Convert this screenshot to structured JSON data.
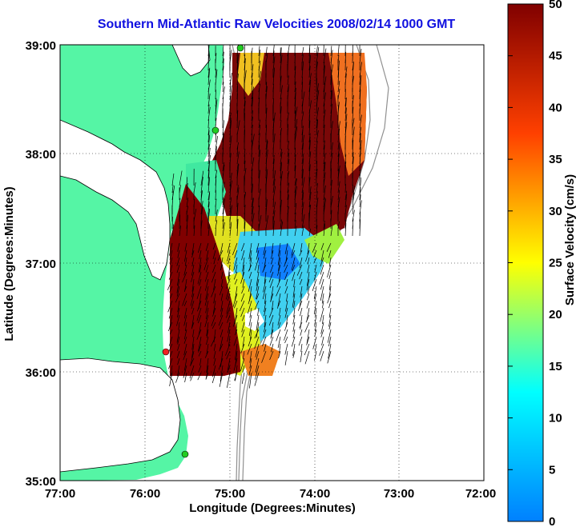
{
  "title": "Southern Mid-Atlantic Raw Velocities 2008/02/14 1000 GMT",
  "xlabel": "Longitude (Degrees:Minutes)",
  "ylabel": "Latitude (Degrees:Minutes)",
  "x_ticks": [
    "77:00",
    "76:00",
    "75:00",
    "74:00",
    "73:00",
    "72:00"
  ],
  "y_ticks": [
    "39:00",
    "38:00",
    "37:00",
    "36:00",
    "35:00"
  ],
  "colorbar": {
    "label": "Surface Velocity (cm/s)",
    "ticks": [
      "50",
      "45",
      "40",
      "35",
      "30",
      "25",
      "20",
      "15",
      "10",
      "5",
      "0"
    ],
    "min": 0,
    "max": 50,
    "colormap": "jet"
  },
  "colors": {
    "land": "#55f5a5",
    "water": "#ffffff",
    "title": "#1010e0",
    "vectors": "#000000",
    "isobath": "#909090",
    "station_marker": "#22cc22",
    "station_marker_red": "#ee2222"
  },
  "chart_data": {
    "type": "heatmap",
    "title": "Southern Mid-Atlantic Raw Velocities 2008/02/14 1000 GMT",
    "xlabel": "Longitude (Degrees:Minutes)",
    "ylabel": "Latitude (Degrees:Minutes)",
    "xlim": [
      "77:00",
      "72:00"
    ],
    "ylim": [
      "35:00",
      "39:00"
    ],
    "colorbar_label": "Surface Velocity (cm/s)",
    "colorbar_range": [
      0,
      50
    ],
    "grid": true
  }
}
